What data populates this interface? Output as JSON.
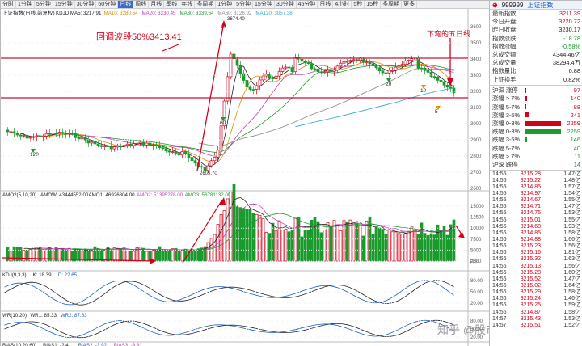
{
  "tabs": [
    "分时",
    "1分钟",
    "5分钟",
    "15分钟",
    "30分钟",
    "60分钟",
    "日线",
    "周线",
    "月线",
    "季线",
    "年线",
    "多周期",
    "1分钟",
    "5分钟",
    "15分钟",
    "30分钟",
    "45分钟",
    "日线",
    "4小时",
    "5秒",
    "15秒",
    "多周期",
    "更多"
  ],
  "active_tab": 6,
  "main": {
    "title": "上证指数(日线,前复权)",
    "ma_legend": [
      {
        "label": "KDJD MA5: 3217.91",
        "color": "#222222"
      },
      {
        "label": "MA10: 3280.64",
        "color": "#d89000"
      },
      {
        "label": "MA20: 3330.45",
        "color": "#c03db8"
      },
      {
        "label": "MA30: 3339.64",
        "color": "#1a9b2c"
      },
      {
        "label": "MA60: 3126.92",
        "color": "#888888"
      },
      {
        "label": "MA120: 3057.38",
        "color": "#2fa8c8"
      }
    ],
    "annotation_retrace": "回调波段50%3413.41",
    "annotation_down": "下弯的五日线",
    "high_label": "3674.40",
    "low_label": "2609.70",
    "marker_labels": [
      "120",
      "60",
      "20",
      "10",
      "5"
    ],
    "price_axis": [
      "3600",
      "3500",
      "3400",
      "3300",
      "3200",
      "3100",
      "3000",
      "2900",
      "2800",
      "2700",
      "2600"
    ]
  },
  "volume": {
    "legend": [
      {
        "label": "AMO2(5,10,20)",
        "color": "#222222"
      },
      {
        "label": "AMOW: 43444552.00",
        "color": "#222222"
      },
      {
        "label": "AMO1: 46926804.00",
        "color": "#222222"
      },
      {
        "label": "AMO2: 51395276.00",
        "color": "#c03db8"
      },
      {
        "label": "AMO3: 56781132.00",
        "color": "#1a9b2c"
      }
    ],
    "axis": [
      "15000",
      "12500",
      "10000",
      "7500",
      "5000",
      "2500"
    ],
    "unit": "百亿"
  },
  "kdj": {
    "legend": [
      {
        "label": "KDJ(9,3,3)",
        "color": "#222222"
      },
      {
        "label": "K: 18.39",
        "color": "#222222"
      },
      {
        "label": "D: 22.65",
        "color": "#1a5bc7"
      }
    ],
    "axis": [
      "80.00",
      "50.00",
      "20.00"
    ]
  },
  "wr": {
    "legend": [
      {
        "label": "WR(10,20)",
        "color": "#222222"
      },
      {
        "label": "WR1: 85.33",
        "color": "#222222"
      },
      {
        "label": "WR2: 87.63",
        "color": "#1a5bc7"
      }
    ],
    "axis": [
      "80.00",
      "50.00",
      "20.00"
    ]
  },
  "bias": {
    "legend": [
      {
        "label": "BIAS(10,20,60)",
        "color": "#222222"
      },
      {
        "label": "BIAS1: -2.41",
        "color": "#222222"
      },
      {
        "label": "BIAS2: -3.92",
        "color": "#1a5bc7"
      },
      {
        "label": "BIAS3: -3.81",
        "color": "#c03db8"
      }
    ]
  },
  "watermark": "知乎 @股市白话胖子",
  "quote": {
    "code": "999999",
    "name": "上证指数",
    "stats": [
      {
        "label": "最新指数",
        "value": "3211.39",
        "cls": "red"
      },
      {
        "label": "今日开盘",
        "value": "3220.72",
        "cls": "red"
      },
      {
        "label": "昨日收盘",
        "value": "3230.17",
        "cls": "dark"
      },
      {
        "label": "指数涨跌",
        "value": "-18.78",
        "cls": "green"
      },
      {
        "label": "指数涨幅",
        "value": "-0.58%",
        "cls": "green"
      },
      {
        "label": "总成交额",
        "value": "4344.46亿",
        "cls": "dark"
      },
      {
        "label": "总成交量",
        "value": "38294.4万",
        "cls": "dark"
      },
      {
        "label": "指数量比",
        "value": "0.88",
        "cls": "dark"
      },
      {
        "label": "上证换手",
        "value": "0.82%",
        "cls": "dark"
      }
    ],
    "distribution": [
      {
        "label": "沪深 涨停",
        "value": "97",
        "fill": 0.04,
        "color": "#d0021b",
        "cls": "red"
      },
      {
        "label": "涨幅 > 7%",
        "value": "140",
        "fill": 0.06,
        "color": "#d0021b",
        "cls": "red"
      },
      {
        "label": "涨幅 5-7%",
        "value": "88",
        "fill": 0.04,
        "color": "#d0021b",
        "cls": "red"
      },
      {
        "label": "涨幅 3-5%",
        "value": "241",
        "fill": 0.11,
        "color": "#d0021b",
        "cls": "red"
      },
      {
        "label": "涨幅 0-3%",
        "value": "2259",
        "fill": 1.0,
        "color": "#d0021b",
        "cls": "red"
      },
      {
        "label": "跌幅 0-3%",
        "value": "2259",
        "fill": 1.0,
        "color": "#1a9b2c",
        "cls": "green"
      },
      {
        "label": "跌幅 3-5%",
        "value": "146",
        "fill": 0.07,
        "color": "#1a9b2c",
        "cls": "green"
      },
      {
        "label": "跌幅 5-7%",
        "value": "40",
        "fill": 0.02,
        "color": "#1a9b2c",
        "cls": "green"
      },
      {
        "label": "跌幅 > 7%",
        "value": "11",
        "fill": 0.01,
        "color": "#1a9b2c",
        "cls": "green"
      },
      {
        "label": "沪深 跌停",
        "value": "14",
        "fill": 0.01,
        "color": "#1a9b2c",
        "cls": "green"
      }
    ],
    "ticks": [
      {
        "t": "14:55",
        "p": "3215.28",
        "v": "1.47亿"
      },
      {
        "t": "14:55",
        "p": "3215.22",
        "v": "1.48亿"
      },
      {
        "t": "14:55",
        "p": "3214.85",
        "v": "1.57亿"
      },
      {
        "t": "14:55",
        "p": "3214.97",
        "v": "1.54亿"
      },
      {
        "t": "14:55",
        "p": "3214.67",
        "v": "1.55亿"
      },
      {
        "t": "14:55",
        "p": "3214.71",
        "v": "1.47亿"
      },
      {
        "t": "14:55",
        "p": "3214.75",
        "v": "1.53亿"
      },
      {
        "t": "14:55",
        "p": "3215.01",
        "v": "1.55亿"
      },
      {
        "t": "14:56",
        "p": "3214.68",
        "v": "1.93亿"
      },
      {
        "t": "14:56",
        "p": "3214.85",
        "v": "1.58亿"
      },
      {
        "t": "14:56",
        "p": "3214.88",
        "v": "1.66亿"
      },
      {
        "t": "14:56",
        "p": "3215.23",
        "v": "1.56亿"
      },
      {
        "t": "14:56",
        "p": "3215.16",
        "v": "1.81亿"
      },
      {
        "t": "14:56",
        "p": "3215.32",
        "v": "1.63亿"
      },
      {
        "t": "14:56",
        "p": "3215.13",
        "v": "1.56亿"
      },
      {
        "t": "14:56",
        "p": "3215.28",
        "v": "1.60亿"
      },
      {
        "t": "14:56",
        "p": "3215.52",
        "v": "1.47亿"
      },
      {
        "t": "14:56",
        "p": "3215.02",
        "v": "1.64亿"
      },
      {
        "t": "14:56",
        "p": "3215.29",
        "v": "1.58亿"
      },
      {
        "t": "14:56",
        "p": "3215.24",
        "v": "1.46亿"
      },
      {
        "t": "14:56",
        "p": "3215.25",
        "v": "1.59亿"
      },
      {
        "t": "14:56",
        "p": "3214.87",
        "v": "1.58亿"
      },
      {
        "t": "14:57",
        "p": "3215.43",
        "v": "1.53亿"
      },
      {
        "t": "14:57",
        "p": "3215.51",
        "v": "1.52亿"
      }
    ]
  }
}
